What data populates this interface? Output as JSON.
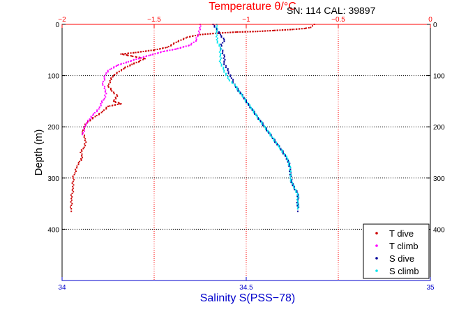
{
  "chart_data": {
    "type": "scatter",
    "title": "",
    "header_text": "SN: 114  CAL: 39897",
    "ylabel": "Depth (m)",
    "xlabel_bottom": "Salinity S(PSS−78)",
    "xlabel_top": "Temperature θ/°C",
    "y_axis": {
      "range": [
        0,
        500
      ],
      "reversed": true,
      "ticks": [
        "0",
        "100",
        "200",
        "300",
        "400"
      ],
      "tick_values": [
        0,
        100,
        200,
        300,
        400
      ]
    },
    "x_bottom_axis": {
      "range": [
        34,
        35
      ],
      "ticks": [
        "34",
        "34.5",
        "35"
      ],
      "tick_values": [
        34,
        34.5,
        35
      ]
    },
    "x_top_axis": {
      "range": [
        -2,
        0
      ],
      "ticks": [
        "−2",
        "−1.5",
        "−1",
        "−0.5",
        "0"
      ],
      "tick_values": [
        -2,
        -1.5,
        -1,
        -0.5,
        0
      ]
    },
    "grid": true,
    "legend_position": "bottom-right",
    "colors": {
      "temperature_axis": "#ff0000",
      "salinity_axis": "#0000cc",
      "t_dive": "#cc0000",
      "t_climb": "#ff00ff",
      "s_dive": "#000099",
      "s_climb": "#00e5ee"
    },
    "series": [
      {
        "name": "T dive",
        "axis": "top",
        "color": "#cc0000",
        "points": [
          [
            -0.63,
            0
          ],
          [
            -0.64,
            3
          ],
          [
            -0.65,
            6
          ],
          [
            -0.68,
            8
          ],
          [
            -0.75,
            10
          ],
          [
            -0.85,
            12
          ],
          [
            -0.95,
            14
          ],
          [
            -1.05,
            15
          ],
          [
            -1.15,
            17
          ],
          [
            -1.25,
            20
          ],
          [
            -1.32,
            25
          ],
          [
            -1.38,
            35
          ],
          [
            -1.43,
            45
          ],
          [
            -1.5,
            50
          ],
          [
            -1.6,
            55
          ],
          [
            -1.68,
            58
          ],
          [
            -1.62,
            62
          ],
          [
            -1.55,
            67
          ],
          [
            -1.58,
            72
          ],
          [
            -1.62,
            78
          ],
          [
            -1.66,
            85
          ],
          [
            -1.69,
            92
          ],
          [
            -1.72,
            100
          ],
          [
            -1.74,
            110
          ],
          [
            -1.75,
            120
          ],
          [
            -1.73,
            130
          ],
          [
            -1.7,
            140
          ],
          [
            -1.72,
            150
          ],
          [
            -1.68,
            155
          ],
          [
            -1.75,
            160
          ],
          [
            -1.78,
            170
          ],
          [
            -1.82,
            180
          ],
          [
            -1.86,
            190
          ],
          [
            -1.88,
            200
          ],
          [
            -1.89,
            210
          ],
          [
            -1.88,
            220
          ],
          [
            -1.87,
            230
          ],
          [
            -1.88,
            240
          ],
          [
            -1.9,
            250
          ],
          [
            -1.89,
            260
          ],
          [
            -1.91,
            270
          ],
          [
            -1.92,
            280
          ],
          [
            -1.93,
            290
          ],
          [
            -1.94,
            300
          ],
          [
            -1.94,
            320
          ],
          [
            -1.95,
            340
          ],
          [
            -1.95,
            360
          ],
          [
            -1.95,
            365
          ]
        ]
      },
      {
        "name": "T climb",
        "axis": "top",
        "color": "#ff00ff",
        "points": [
          [
            -1.25,
            0
          ],
          [
            -1.25,
            10
          ],
          [
            -1.26,
            20
          ],
          [
            -1.27,
            30
          ],
          [
            -1.3,
            40
          ],
          [
            -1.38,
            48
          ],
          [
            -1.45,
            53
          ],
          [
            -1.52,
            60
          ],
          [
            -1.58,
            66
          ],
          [
            -1.64,
            73
          ],
          [
            -1.7,
            80
          ],
          [
            -1.74,
            88
          ],
          [
            -1.76,
            95
          ],
          [
            -1.77,
            105
          ],
          [
            -1.78,
            115
          ],
          [
            -1.77,
            125
          ],
          [
            -1.76,
            135
          ],
          [
            -1.77,
            145
          ],
          [
            -1.79,
            155
          ],
          [
            -1.8,
            165
          ],
          [
            -1.83,
            175
          ],
          [
            -1.85,
            185
          ],
          [
            -1.87,
            195
          ],
          [
            -1.88,
            205
          ],
          [
            -1.89,
            215
          ]
        ]
      },
      {
        "name": "S dive",
        "axis": "bottom",
        "color": "#000099",
        "points": [
          [
            34.41,
            0
          ],
          [
            34.42,
            10
          ],
          [
            34.43,
            20
          ],
          [
            34.44,
            30
          ],
          [
            34.43,
            45
          ],
          [
            34.44,
            60
          ],
          [
            34.44,
            75
          ],
          [
            34.45,
            90
          ],
          [
            34.46,
            105
          ],
          [
            34.47,
            120
          ],
          [
            34.49,
            140
          ],
          [
            34.51,
            160
          ],
          [
            34.53,
            180
          ],
          [
            34.55,
            200
          ],
          [
            34.57,
            220
          ],
          [
            34.59,
            240
          ],
          [
            34.61,
            260
          ],
          [
            34.62,
            280
          ],
          [
            34.62,
            300
          ],
          [
            34.63,
            320
          ],
          [
            34.64,
            330
          ],
          [
            34.64,
            345
          ],
          [
            34.64,
            360
          ],
          [
            34.64,
            365
          ]
        ]
      },
      {
        "name": "S climb",
        "axis": "bottom",
        "color": "#00e5ee",
        "points": [
          [
            34.42,
            0
          ],
          [
            34.42,
            15
          ],
          [
            34.42,
            30
          ],
          [
            34.43,
            45
          ],
          [
            34.43,
            60
          ],
          [
            34.43,
            75
          ],
          [
            34.44,
            90
          ],
          [
            34.45,
            105
          ],
          [
            34.47,
            120
          ],
          [
            34.49,
            140
          ],
          [
            34.51,
            160
          ],
          [
            34.53,
            180
          ],
          [
            34.55,
            200
          ],
          [
            34.57,
            220
          ],
          [
            34.59,
            240
          ],
          [
            34.61,
            260
          ],
          [
            34.62,
            280
          ],
          [
            34.62,
            300
          ],
          [
            34.63,
            320
          ],
          [
            34.64,
            330
          ],
          [
            34.64,
            345
          ],
          [
            34.64,
            360
          ]
        ]
      }
    ]
  }
}
